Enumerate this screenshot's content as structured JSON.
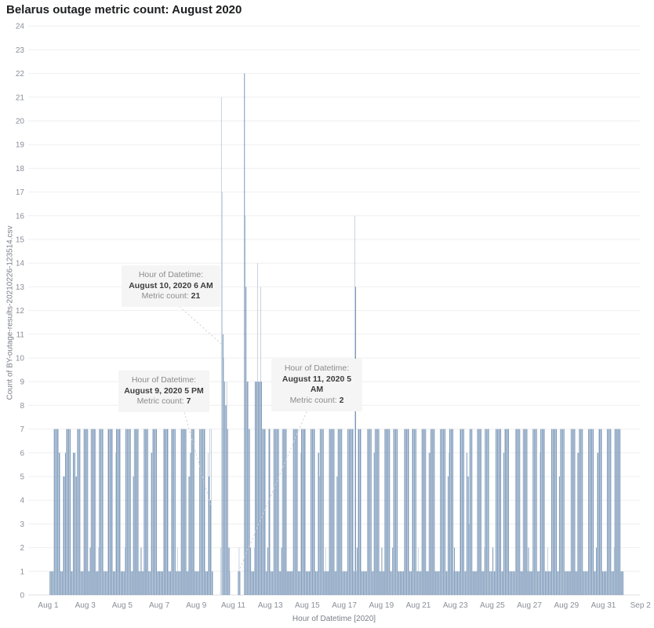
{
  "title": "Belarus outage metric count: August 2020",
  "axes": {
    "y_label": "Count of BY-outage-results-20210226-123514.csv",
    "x_label": "Hour of Datetime [2020]",
    "y_ticks": [
      0,
      1,
      2,
      3,
      4,
      5,
      6,
      7,
      8,
      9,
      10,
      11,
      12,
      13,
      14,
      15,
      16,
      17,
      18,
      19,
      20,
      21,
      22,
      23,
      24
    ],
    "x_tick_labels": [
      "Aug 1",
      "Aug 3",
      "Aug 5",
      "Aug 7",
      "Aug 9",
      "Aug 11",
      "Aug 13",
      "Aug 15",
      "Aug 17",
      "Aug 19",
      "Aug 21",
      "Aug 23",
      "Aug 25",
      "Aug 27",
      "Aug 29",
      "Aug 31",
      "Sep 2"
    ]
  },
  "tooltips": [
    {
      "prefix": "Hour of Datetime: ",
      "datetime": "August 10, 2020 6 AM",
      "count_label": "Metric count: ",
      "count": "21"
    },
    {
      "prefix": "Hour of Datetime: ",
      "datetime": "August 9, 2020 5 PM",
      "count_label": "Metric count: ",
      "count": "7"
    },
    {
      "prefix": "Hour of Datetime: ",
      "datetime": "August 11, 2020 5 AM",
      "count_label": "Metric count: ",
      "count": "2"
    }
  ],
  "colors": {
    "bar_dark": "#46719f",
    "bar_light": "#b4c2d5",
    "grid": "#efefef",
    "baseline": "#e2e2e2",
    "axis_text": "#8a8f98",
    "title_text": "#1d1e20",
    "tooltip_bg": "#f5f5f5",
    "tooltip_text": "#8b8b8b",
    "tooltip_bold": "#3d3d3d",
    "leader_line": "#cfcfcf"
  },
  "chart_data": {
    "type": "bar",
    "title": "Belarus outage metric count: August 2020",
    "xlabel": "Hour of Datetime [2020]",
    "ylabel": "Count of BY-outage-results-20210226-123514.csv",
    "x_unit": "hour",
    "x_range": [
      "2020-08-01T00:00",
      "2020-09-01T00:00"
    ],
    "ylim": [
      0,
      24
    ],
    "grid": "horizontal",
    "legend": "none",
    "highlights": [
      {
        "datetime": "2020-08-10T06:00",
        "value": 21,
        "note": "tooltip shown"
      },
      {
        "datetime": "2020-08-09T17:00",
        "value": 7,
        "note": "tooltip shown"
      },
      {
        "datetime": "2020-08-11T05:00",
        "value": 2,
        "note": "tooltip shown"
      },
      {
        "datetime": "2020-08-10T07:00",
        "value": 17
      },
      {
        "datetime": "2020-08-11T12:00",
        "value": 22,
        "note": "max"
      },
      {
        "datetime": "2020-08-11T13:00",
        "value": 16
      },
      {
        "datetime": "2020-08-12T05:00",
        "value": 14
      },
      {
        "datetime": "2020-08-12T09:00",
        "value": 13
      },
      {
        "datetime": "2020-08-17T11:00",
        "value": 16
      },
      {
        "datetime": "2020-08-17T12:00",
        "value": 13
      }
    ],
    "light_bars": [
      [
        9,
        6
      ]
    ],
    "days": [
      {
        "date": "Aug 1",
        "hourly": [
          1,
          1,
          1,
          1,
          1,
          7,
          7,
          7,
          7,
          7,
          7,
          7,
          6,
          6,
          1,
          1,
          1,
          5,
          5,
          5,
          6,
          7,
          7,
          7
        ]
      },
      {
        "date": "Aug 2",
        "hourly": [
          7,
          7,
          7,
          1,
          1,
          1,
          6,
          6,
          6,
          5,
          5,
          7,
          7,
          7,
          7,
          7,
          1,
          1,
          1,
          1,
          7,
          7,
          7,
          7
        ]
      },
      {
        "date": "Aug 3",
        "hourly": [
          7,
          7,
          1,
          1,
          2,
          7,
          7,
          7,
          7,
          7,
          7,
          7,
          1,
          1,
          1,
          2,
          7,
          7,
          7,
          7,
          7,
          7,
          1,
          1
        ]
      },
      {
        "date": "Aug 4",
        "hourly": [
          1,
          1,
          1,
          7,
          7,
          7,
          7,
          7,
          7,
          7,
          1,
          1,
          1,
          6,
          7,
          7,
          7,
          7,
          7,
          7,
          1,
          1,
          1,
          1
        ]
      },
      {
        "date": "Aug 5",
        "hourly": [
          1,
          2,
          7,
          7,
          7,
          7,
          7,
          7,
          7,
          1,
          1,
          1,
          5,
          7,
          7,
          7,
          7,
          7,
          7,
          1,
          1,
          1,
          2,
          1
        ]
      },
      {
        "date": "Aug 6",
        "hourly": [
          1,
          1,
          7,
          7,
          7,
          7,
          7,
          7,
          1,
          1,
          1,
          6,
          6,
          7,
          7,
          7,
          7,
          7,
          7,
          1,
          1,
          1,
          1,
          1
        ]
      },
      {
        "date": "Aug 7",
        "hourly": [
          1,
          1,
          1,
          7,
          7,
          7,
          7,
          7,
          7,
          7,
          1,
          1,
          1,
          7,
          7,
          7,
          7,
          7,
          7,
          1,
          1,
          2,
          1,
          1
        ]
      },
      {
        "date": "Aug 8",
        "hourly": [
          1,
          1,
          7,
          7,
          7,
          7,
          7,
          7,
          7,
          1,
          1,
          1,
          5,
          5,
          6,
          7,
          7,
          7,
          7,
          7,
          1,
          1,
          1,
          1
        ]
      },
      {
        "date": "Aug 9",
        "hourly": [
          1,
          1,
          7,
          7,
          7,
          7,
          7,
          7,
          7,
          7,
          1,
          1,
          1,
          6,
          5,
          7,
          4,
          7,
          1,
          1,
          0,
          0,
          0,
          0
        ]
      },
      {
        "date": "Aug 10",
        "hourly": [
          0,
          0,
          0,
          0,
          0,
          2,
          21,
          17,
          11,
          10,
          9,
          8,
          8,
          9,
          7,
          2,
          2,
          1,
          0,
          0,
          0,
          0,
          0,
          0
        ]
      },
      {
        "date": "Aug 11",
        "hourly": [
          0,
          0,
          0,
          0,
          1,
          2,
          1,
          0,
          0,
          0,
          0,
          0,
          22,
          16,
          13,
          9,
          9,
          9,
          7,
          7,
          2,
          1,
          1,
          1
        ]
      },
      {
        "date": "Aug 12",
        "hourly": [
          1,
          2,
          9,
          9,
          9,
          14,
          9,
          9,
          9,
          13,
          9,
          7,
          7,
          7,
          7,
          7,
          1,
          1,
          2,
          7,
          7,
          7,
          1,
          1
        ]
      },
      {
        "date": "Aug 13",
        "hourly": [
          1,
          1,
          7,
          7,
          7,
          7,
          7,
          7,
          7,
          1,
          1,
          1,
          2,
          7,
          7,
          7,
          7,
          7,
          7,
          1,
          1,
          1,
          1,
          1
        ]
      },
      {
        "date": "Aug 14",
        "hourly": [
          1,
          1,
          1,
          7,
          7,
          7,
          7,
          7,
          7,
          7,
          1,
          1,
          1,
          6,
          7,
          7,
          7,
          7,
          7,
          7,
          1,
          1,
          1,
          1
        ]
      },
      {
        "date": "Aug 15",
        "hourly": [
          1,
          1,
          7,
          7,
          7,
          7,
          7,
          7,
          1,
          1,
          1,
          6,
          6,
          5,
          7,
          7,
          7,
          7,
          7,
          1,
          1,
          2,
          1,
          1
        ]
      },
      {
        "date": "Aug 16",
        "hourly": [
          1,
          1,
          7,
          7,
          7,
          7,
          7,
          7,
          7,
          1,
          1,
          1,
          5,
          7,
          7,
          7,
          7,
          7,
          7,
          1,
          1,
          1,
          1,
          1
        ]
      },
      {
        "date": "Aug 17",
        "hourly": [
          1,
          1,
          7,
          7,
          7,
          7,
          7,
          7,
          7,
          7,
          1,
          16,
          13,
          1,
          2,
          7,
          7,
          7,
          7,
          7,
          1,
          1,
          1,
          1
        ]
      },
      {
        "date": "Aug 18",
        "hourly": [
          1,
          1,
          1,
          7,
          7,
          7,
          7,
          7,
          7,
          1,
          1,
          1,
          6,
          7,
          7,
          7,
          7,
          7,
          7,
          1,
          1,
          1,
          2,
          1
        ]
      },
      {
        "date": "Aug 19",
        "hourly": [
          1,
          1,
          7,
          7,
          7,
          7,
          7,
          7,
          7,
          1,
          1,
          1,
          2,
          7,
          7,
          7,
          7,
          7,
          7,
          1,
          1,
          1,
          1,
          1
        ]
      },
      {
        "date": "Aug 20",
        "hourly": [
          1,
          1,
          1,
          7,
          7,
          7,
          7,
          7,
          7,
          7,
          1,
          1,
          1,
          7,
          7,
          7,
          7,
          7,
          7,
          1,
          1,
          2,
          1,
          1
        ]
      },
      {
        "date": "Aug 21",
        "hourly": [
          1,
          1,
          7,
          7,
          7,
          7,
          7,
          7,
          1,
          1,
          1,
          6,
          6,
          7,
          7,
          7,
          7,
          7,
          7,
          1,
          1,
          1,
          1,
          1
        ]
      },
      {
        "date": "Aug 22",
        "hourly": [
          1,
          1,
          7,
          7,
          7,
          7,
          7,
          7,
          7,
          1,
          1,
          1,
          5,
          6,
          7,
          7,
          7,
          7,
          7,
          1,
          2,
          1,
          1,
          1
        ]
      },
      {
        "date": "Aug 23",
        "hourly": [
          1,
          1,
          1,
          7,
          7,
          7,
          7,
          7,
          7,
          1,
          1,
          1,
          6,
          5,
          5,
          3,
          7,
          7,
          7,
          7,
          1,
          1,
          1,
          1
        ]
      },
      {
        "date": "Aug 24",
        "hourly": [
          1,
          1,
          7,
          7,
          7,
          7,
          7,
          7,
          1,
          1,
          1,
          2,
          7,
          7,
          7,
          7,
          7,
          7,
          1,
          1,
          1,
          1,
          2,
          1
        ]
      },
      {
        "date": "Aug 25",
        "hourly": [
          1,
          1,
          7,
          7,
          7,
          7,
          7,
          7,
          7,
          1,
          1,
          1,
          6,
          7,
          7,
          7,
          7,
          7,
          7,
          1,
          1,
          1,
          1,
          1
        ]
      },
      {
        "date": "Aug 26",
        "hourly": [
          1,
          1,
          1,
          7,
          7,
          7,
          7,
          7,
          7,
          7,
          1,
          1,
          1,
          7,
          7,
          7,
          7,
          7,
          7,
          1,
          2,
          1,
          1,
          1
        ]
      },
      {
        "date": "Aug 27",
        "hourly": [
          1,
          1,
          7,
          7,
          7,
          7,
          7,
          7,
          1,
          1,
          1,
          6,
          7,
          7,
          7,
          7,
          7,
          7,
          1,
          1,
          1,
          2,
          1,
          1
        ]
      },
      {
        "date": "Aug 28",
        "hourly": [
          1,
          1,
          7,
          7,
          7,
          7,
          7,
          7,
          7,
          1,
          1,
          1,
          5,
          7,
          7,
          7,
          7,
          7,
          7,
          1,
          1,
          1,
          1,
          1
        ]
      },
      {
        "date": "Aug 29",
        "hourly": [
          1,
          1,
          1,
          7,
          7,
          7,
          7,
          7,
          7,
          1,
          1,
          1,
          6,
          6,
          7,
          7,
          7,
          7,
          7,
          1,
          1,
          1,
          1,
          1
        ]
      },
      {
        "date": "Aug 30",
        "hourly": [
          1,
          1,
          7,
          7,
          7,
          7,
          7,
          7,
          7,
          1,
          1,
          1,
          2,
          6,
          6,
          7,
          7,
          7,
          7,
          7,
          1,
          1,
          1,
          1
        ]
      },
      {
        "date": "Aug 31",
        "hourly": [
          1,
          1,
          7,
          7,
          7,
          7,
          7,
          7,
          1,
          1,
          1,
          2,
          7,
          7,
          7,
          7,
          7,
          7,
          7,
          7,
          1,
          1,
          1,
          1
        ]
      }
    ]
  }
}
